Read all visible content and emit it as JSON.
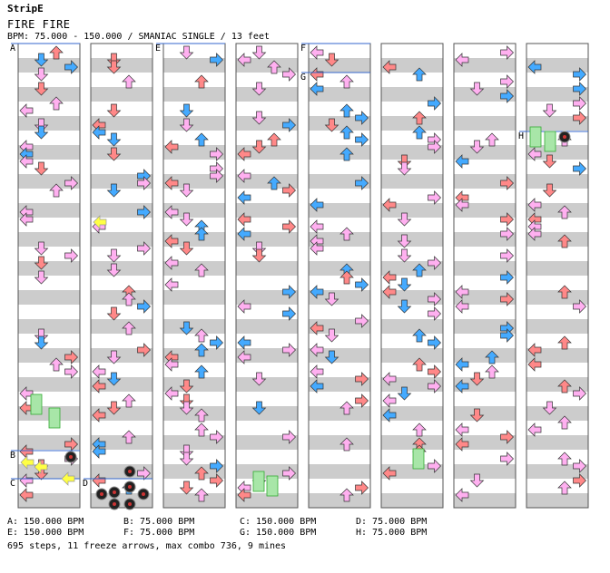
{
  "header": {
    "brand": "StripE",
    "song_title": "FIRE FIRE",
    "meta": "BPM: 75.000 - 150.000 / SMANIAC SINGLE / 13 feet"
  },
  "chart": {
    "columns": 8,
    "section_labels": [
      "A",
      "B",
      "C",
      "D",
      "E",
      "F",
      "G",
      "H"
    ],
    "colors": {
      "stripe": "#cccccc",
      "column_border": "#555555",
      "section_line": "#3366cc",
      "arrow_red": "#ff8888",
      "arrow_pink": "#ffb0f0",
      "arrow_blue": "#44aaff",
      "freeze_green": "#a8e6a8",
      "shock_yellow": "#ffff44",
      "mine": "#222222"
    }
  },
  "legend": {
    "bpm_changes": [
      "A: 150.000 BPM",
      "B: 75.000 BPM",
      "C: 150.000 BPM",
      "D: 75.000 BPM",
      "E: 150.000 BPM",
      "F: 75.000 BPM",
      "G: 150.000 BPM",
      "H: 75.000 BPM"
    ],
    "summary": "695 steps, 11 freeze arrows, max combo 736, 9 mines"
  }
}
